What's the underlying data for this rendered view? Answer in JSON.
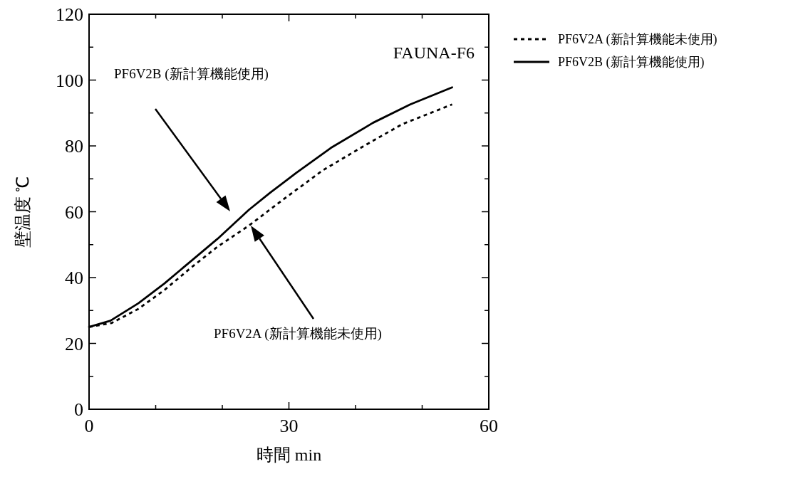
{
  "chart_data": {
    "type": "line",
    "title": "FAUNA-F6",
    "xlabel": "時間 min",
    "ylabel": "壁温度 ℃",
    "xlim": [
      0,
      60
    ],
    "ylim": [
      0,
      120
    ],
    "xticks": [
      0,
      {
        "value": 10,
        "label": null
      },
      {
        "value": 20,
        "label": null
      },
      30,
      {
        "value": 40,
        "label": null
      },
      {
        "value": 50,
        "label": null
      },
      60
    ],
    "yticks": [
      0,
      {
        "value": 10,
        "label": null
      },
      20,
      {
        "value": 30,
        "label": null
      },
      40,
      {
        "value": 50,
        "label": null
      },
      60,
      {
        "value": 70,
        "label": null
      },
      80,
      {
        "value": 90,
        "label": null
      },
      100,
      {
        "value": 110,
        "label": null
      },
      120
    ],
    "grid": false,
    "legend": "right",
    "series": [
      {
        "name": "PF6V2A (新計算機能未使用)",
        "color": "#000000",
        "line_style": "dashed",
        "x": [
          0,
          3.4,
          7.4,
          11.3,
          15.3,
          19.3,
          24.0,
          29.2,
          35.1,
          41.1,
          47.0,
          54.5
        ],
        "values": [
          25,
          26.2,
          30.5,
          36.2,
          43.0,
          49.4,
          55.8,
          63.8,
          72.6,
          79.8,
          86.6,
          92.6
        ]
      },
      {
        "name": "PF6V2B (新計算機能使用)",
        "color": "#000000",
        "line_style": "solid",
        "x": [
          0,
          3.2,
          7.4,
          11.3,
          15.3,
          19.3,
          24.0,
          27.2,
          31.1,
          36.3,
          42.6,
          48.2,
          54.5
        ],
        "values": [
          25,
          26.9,
          32.2,
          38.2,
          45,
          51.8,
          60.6,
          65.8,
          71.8,
          79.4,
          87.0,
          92.6,
          97.8
        ]
      }
    ],
    "annotations": [
      "PF6V2B (新計算機能使用)",
      "PF6V2A (新計算機能未使用)"
    ]
  }
}
